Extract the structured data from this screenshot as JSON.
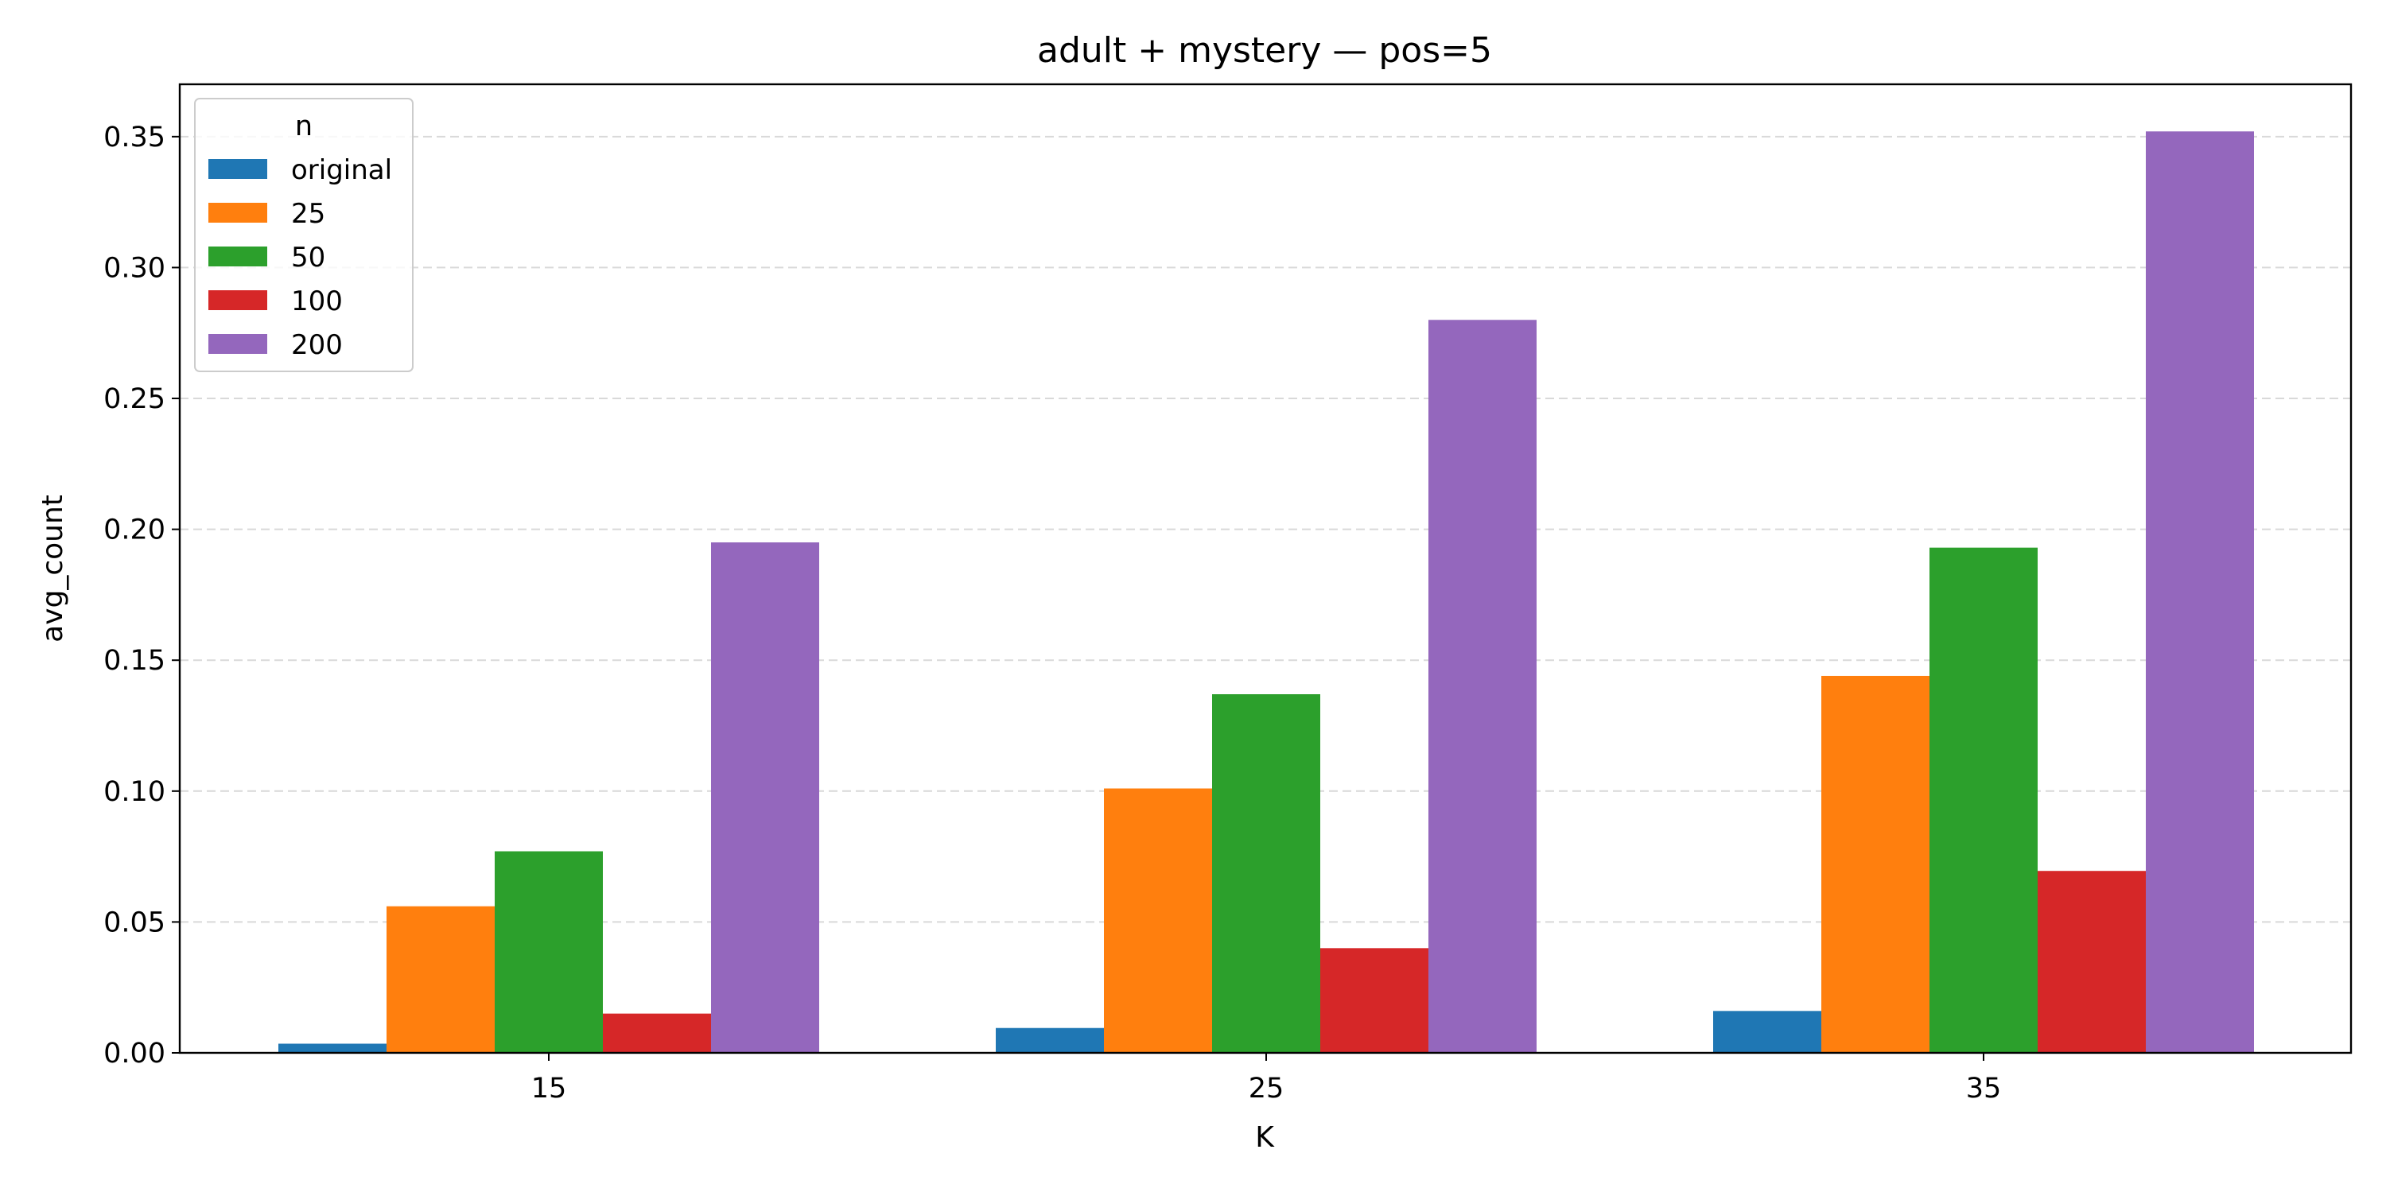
{
  "chart_data": {
    "type": "bar",
    "title": "adult + mystery — pos=5",
    "xlabel": "K",
    "ylabel": "avg_count",
    "categories": [
      "15",
      "25",
      "35"
    ],
    "ylim": [
      0,
      0.37
    ],
    "yticks": [
      "0.00",
      "0.05",
      "0.10",
      "0.15",
      "0.20",
      "0.25",
      "0.30",
      "0.35"
    ],
    "grid": "y-dashed",
    "legend": {
      "title": "n",
      "placement": "top-left"
    },
    "series": [
      {
        "name": "original",
        "color": "#1f77b4",
        "values": [
          0.0035,
          0.0095,
          0.016
        ]
      },
      {
        "name": "25",
        "color": "#ff7f0e",
        "values": [
          0.056,
          0.101,
          0.144
        ]
      },
      {
        "name": "50",
        "color": "#2ca02c",
        "values": [
          0.077,
          0.137,
          0.193
        ]
      },
      {
        "name": "100",
        "color": "#d62728",
        "values": [
          0.015,
          0.04,
          0.0695
        ]
      },
      {
        "name": "200",
        "color": "#9467bd",
        "values": [
          0.195,
          0.28,
          0.352
        ]
      }
    ]
  }
}
